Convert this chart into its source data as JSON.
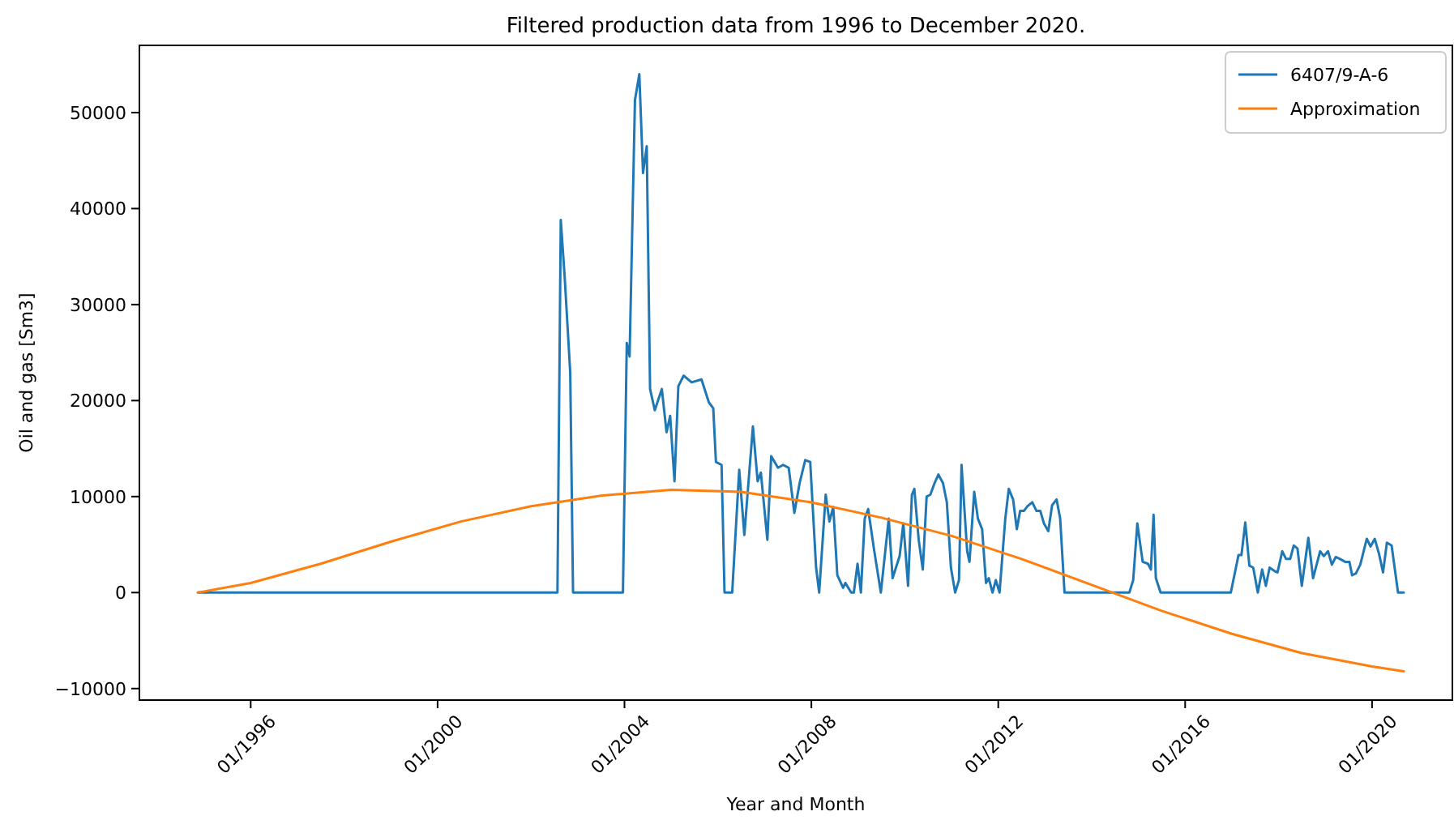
{
  "chart_data": {
    "type": "line",
    "title": "Filtered production data from 1996 to December 2020.",
    "xlabel": "Year and Month",
    "ylabel": "Oil and gas [Sm3]",
    "xlim": [
      "1993-08-14",
      "2021-09-20"
    ],
    "ylim": [
      -11200,
      57000
    ],
    "xticks": [
      {
        "value": "1996-01",
        "label": "01/1996"
      },
      {
        "value": "2000-01",
        "label": "01/2000"
      },
      {
        "value": "2004-01",
        "label": "01/2004"
      },
      {
        "value": "2008-01",
        "label": "01/2008"
      },
      {
        "value": "2012-01",
        "label": "01/2012"
      },
      {
        "value": "2016-01",
        "label": "01/2016"
      },
      {
        "value": "2020-01",
        "label": "01/2020"
      }
    ],
    "yticks": [
      -10000,
      0,
      10000,
      20000,
      30000,
      40000,
      50000
    ],
    "grid": false,
    "legend": "top right",
    "line_style": "solid",
    "marker": "none",
    "series": [
      {
        "name": "6407/9-A-6",
        "color": "#1f77b4",
        "x": [
          "1994-11-14",
          "2002-07-26",
          "2002-08-21",
          "2002-09-20",
          "2002-11-03",
          "2002-11-25",
          "2003-12-20",
          "2004-01-19",
          "2004-02-10",
          "2004-03-23",
          "2004-04-26",
          "2004-05-25",
          "2004-06-23",
          "2004-07-19",
          "2004-08-25",
          "2004-10-19",
          "2004-11-25",
          "2004-12-23",
          "2005-01-26",
          "2005-02-25",
          "2005-04-08",
          "2005-06-09",
          "2005-08-25",
          "2005-10-22",
          "2005-11-25",
          "2005-12-16",
          "2006-01-29",
          "2006-02-21",
          "2006-04-22",
          "2006-06-16",
          "2006-07-26",
          "2006-10-01",
          "2006-11-07",
          "2006-12-02",
          "2007-01-22",
          "2007-02-21",
          "2007-04-15",
          "2007-05-25",
          "2007-07-08",
          "2007-08-21",
          "2007-10-01",
          "2007-11-14",
          "2007-12-23",
          "2008-02-07",
          "2008-03-02",
          "2008-04-22",
          "2008-05-21",
          "2008-06-20",
          "2008-07-22",
          "2008-09-05",
          "2008-09-23",
          "2008-11-07",
          "2008-11-28",
          "2008-12-27",
          "2009-01-22",
          "2009-02-21",
          "2009-03-20",
          "2009-05-07",
          "2009-06-27",
          "2009-08-28",
          "2009-09-27",
          "2009-11-21",
          "2009-12-20",
          "2010-01-26",
          "2010-02-25",
          "2010-03-16",
          "2010-04-19",
          "2010-05-21",
          "2010-06-20",
          "2010-07-19",
          "2010-08-21",
          "2010-09-20",
          "2010-10-26",
          "2010-11-25",
          "2010-12-27",
          "2011-01-29",
          "2011-02-28",
          "2011-03-20",
          "2011-05-03",
          "2011-05-21",
          "2011-06-27",
          "2011-07-26",
          "2011-08-28",
          "2011-09-27",
          "2011-10-19",
          "2011-11-17",
          "2011-12-13",
          "2012-01-11",
          "2012-02-25",
          "2012-03-23",
          "2012-04-26",
          "2012-05-25",
          "2012-06-20",
          "2012-07-19",
          "2012-08-17",
          "2012-09-23",
          "2012-10-26",
          "2012-11-25",
          "2012-12-23",
          "2013-01-26",
          "2013-02-25",
          "2013-04-01",
          "2013-04-29",
          "2013-05-25",
          "2013-06-02",
          "2014-10-22",
          "2014-11-21",
          "2014-12-23",
          "2015-02-03",
          "2015-03-16",
          "2015-04-08",
          "2015-04-29",
          "2015-05-17",
          "2015-06-23",
          "2016-12-23",
          "2017-02-21",
          "2017-03-16",
          "2017-04-15",
          "2017-05-17",
          "2017-06-16",
          "2017-07-22",
          "2017-08-25",
          "2017-09-23",
          "2017-10-22",
          "2017-12-05",
          "2017-12-23",
          "2018-01-29",
          "2018-02-28",
          "2018-04-01",
          "2018-04-29",
          "2018-05-28",
          "2018-07-01",
          "2018-08-21",
          "2018-09-27",
          "2018-11-21",
          "2018-12-20",
          "2019-01-22",
          "2019-02-21",
          "2019-03-23",
          "2019-04-26",
          "2019-06-05",
          "2019-07-08",
          "2019-07-29",
          "2019-08-28",
          "2019-10-01",
          "2019-11-21",
          "2019-12-20",
          "2020-01-22",
          "2020-02-25",
          "2020-03-27",
          "2020-04-26",
          "2020-06-02",
          "2020-07-22",
          "2020-09-05"
        ],
        "values": [
          0,
          0,
          38800,
          33000,
          22900,
          0,
          0,
          26000,
          24600,
          51300,
          54000,
          43700,
          46500,
          21200,
          19000,
          21200,
          16700,
          18400,
          11600,
          21500,
          22600,
          21900,
          22200,
          19800,
          19200,
          13600,
          13300,
          0,
          0,
          12800,
          6000,
          17300,
          11600,
          12500,
          5500,
          14200,
          13000,
          13300,
          13000,
          8300,
          11400,
          13800,
          13600,
          2600,
          0,
          10200,
          7400,
          8900,
          1800,
          500,
          1000,
          0,
          0,
          3000,
          0,
          7700,
          8700,
          4300,
          0,
          7700,
          1500,
          3800,
          7200,
          700,
          10200,
          10800,
          5500,
          2400,
          10000,
          10200,
          11400,
          12300,
          11400,
          9400,
          2600,
          0,
          1300,
          13300,
          4300,
          3200,
          10500,
          7700,
          6600,
          1000,
          1500,
          0,
          1300,
          0,
          7700,
          10800,
          9700,
          6600,
          8500,
          8500,
          9000,
          9400,
          8500,
          8500,
          7200,
          6400,
          9100,
          9700,
          7700,
          1800,
          0,
          0,
          1300,
          7200,
          3200,
          3000,
          2400,
          8100,
          1500,
          0,
          0,
          3900,
          3900,
          7300,
          2800,
          2600,
          0,
          2400,
          700,
          2600,
          2200,
          2100,
          4300,
          3500,
          3500,
          4900,
          4600,
          700,
          5700,
          1500,
          4300,
          3800,
          4300,
          2900,
          3700,
          3500,
          3200,
          3200,
          1800,
          2000,
          2900,
          5600,
          4800,
          5600,
          4000,
          2100,
          5200,
          4900,
          0,
          0
        ]
      },
      {
        "name": "Approximation",
        "color": "#ff7f0e",
        "x": [
          "1994-11-14",
          "1996-01-01",
          "1997-07-01",
          "1999-01-01",
          "2000-07-01",
          "2002-01-01",
          "2003-07-01",
          "2005-01-01",
          "2006-07-01",
          "2008-01-01",
          "2009-07-01",
          "2011-01-01",
          "2012-07-01",
          "2014-01-01",
          "2015-07-01",
          "2017-01-01",
          "2018-07-01",
          "2020-01-01",
          "2020-09-05"
        ],
        "values": [
          0,
          1000,
          3000,
          5300,
          7400,
          9000,
          10100,
          10700,
          10500,
          9400,
          7800,
          5900,
          3500,
          800,
          -1900,
          -4300,
          -6300,
          -7700,
          -8200
        ]
      }
    ]
  }
}
